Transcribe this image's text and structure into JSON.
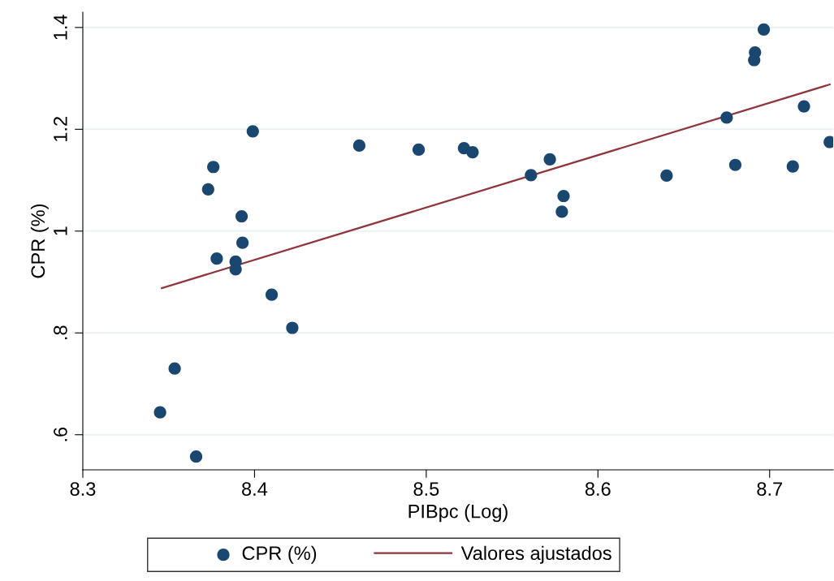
{
  "chart_data": {
    "type": "scatter",
    "xlabel": "PIBpc (Log)",
    "ylabel": "CPR (%)",
    "xlim": [
      8.3,
      8.737
    ],
    "ylim": [
      0.531,
      1.43
    ],
    "xticks": [
      8.3,
      8.4,
      8.5,
      8.6,
      8.7
    ],
    "yticks": [
      {
        "value": 0.6,
        "label": ".6"
      },
      {
        "value": 0.8,
        "label": ".8"
      },
      {
        "value": 1,
        "label": "1"
      },
      {
        "value": 1.2,
        "label": "1.2"
      },
      {
        "value": 1.4,
        "label": "1.4"
      }
    ],
    "grid": "y",
    "legend": "bottom",
    "marker": "circle",
    "series": [
      {
        "name": "CPR (%)",
        "type": "scatter",
        "color": "#1a476f",
        "x": [
          8.399,
          8.376,
          8.373,
          8.3925,
          8.393,
          8.378,
          8.389,
          8.389,
          8.41,
          8.422,
          8.3535,
          8.345,
          8.366,
          8.461,
          8.4956,
          8.522,
          8.527,
          8.561,
          8.572,
          8.58,
          8.579,
          8.6966,
          8.6915,
          8.691,
          8.675,
          8.72,
          8.735,
          8.68,
          8.7135,
          8.64
        ],
        "values": [
          1.196,
          1.126,
          1.082,
          1.029,
          0.977,
          0.946,
          0.94,
          0.925,
          0.875,
          0.81,
          0.73,
          0.644,
          0.557,
          1.168,
          1.16,
          1.163,
          1.155,
          1.11,
          1.141,
          1.069,
          1.038,
          1.396,
          1.351,
          1.336,
          1.223,
          1.245,
          1.175,
          1.13,
          1.127,
          1.109
        ]
      },
      {
        "name": "Valores ajustados",
        "type": "line",
        "color": "#90353b",
        "marker": "none",
        "line_style": "solid",
        "x": [
          8.346,
          8.735
        ],
        "values": [
          0.888,
          1.288
        ]
      }
    ]
  }
}
